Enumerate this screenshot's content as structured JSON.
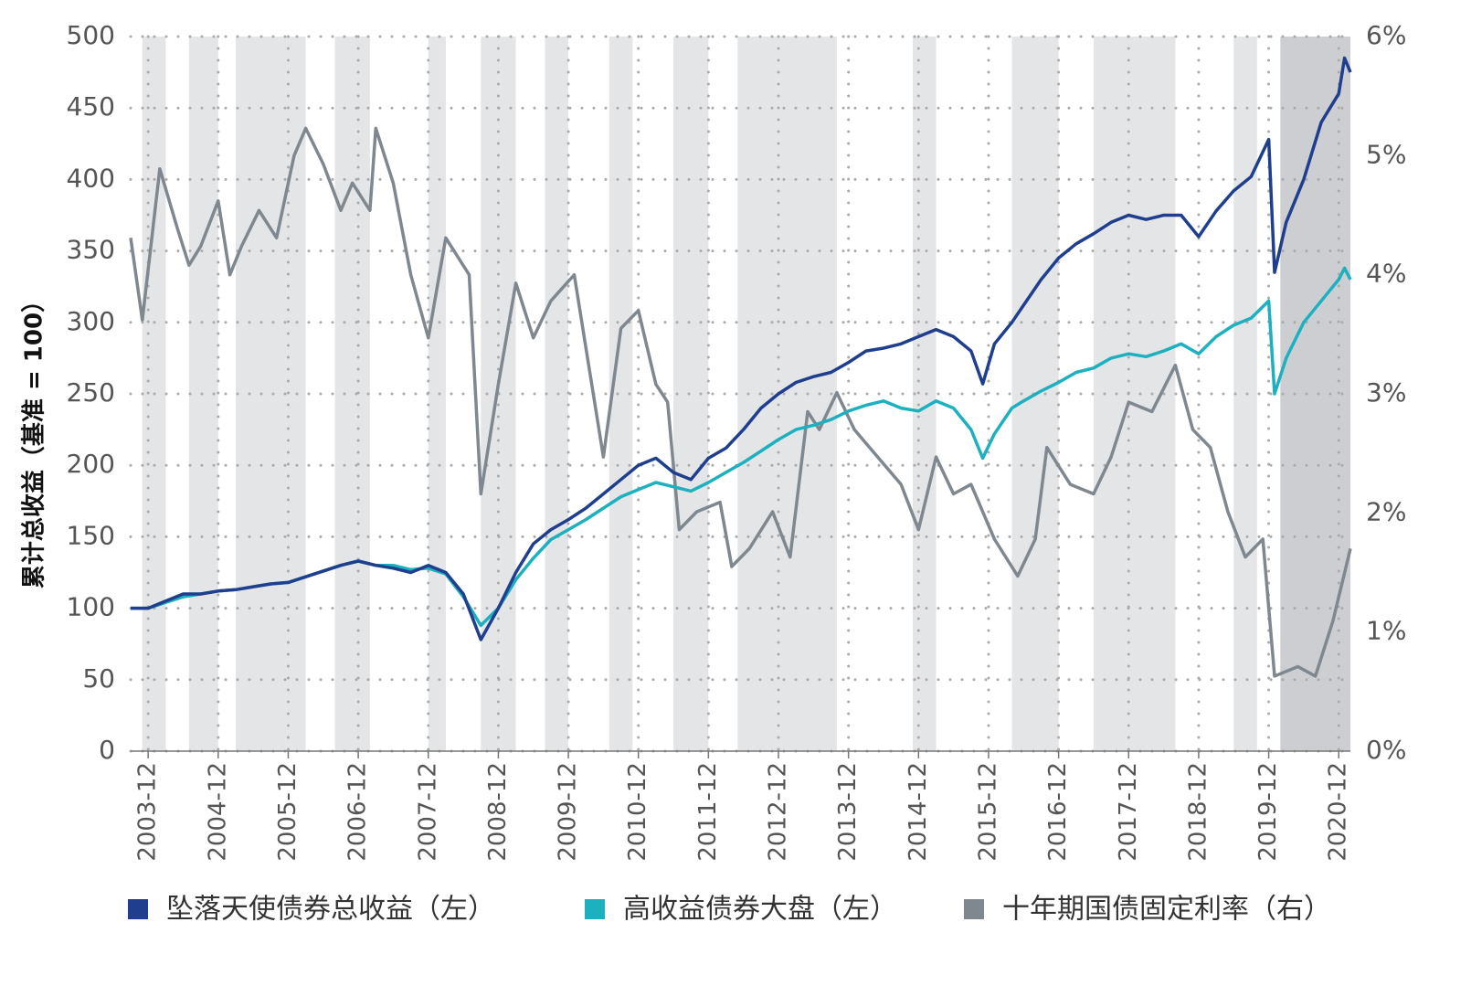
{
  "chart_data": {
    "type": "line",
    "y_label": "累计总收益（基准 = 100）",
    "xlim": [
      "2003-09",
      "2021-02"
    ],
    "xticks": [
      "2003-12",
      "2004-12",
      "2005-12",
      "2006-12",
      "2007-12",
      "2008-12",
      "2009-12",
      "2010-12",
      "2011-12",
      "2012-12",
      "2013-12",
      "2014-12",
      "2015-12",
      "2016-12",
      "2017-12",
      "2018-12",
      "2019-12",
      "2020-12"
    ],
    "ylim": [
      0,
      500
    ],
    "yticks": [
      0,
      50,
      100,
      150,
      200,
      250,
      300,
      350,
      400,
      450,
      500
    ],
    "y2lim": [
      0,
      6
    ],
    "y2ticks": [
      {
        "value": 0,
        "label": "0%"
      },
      {
        "value": 1,
        "label": "1%"
      },
      {
        "value": 2,
        "label": "2%"
      },
      {
        "value": 3,
        "label": "3%"
      },
      {
        "value": 4,
        "label": "4%"
      },
      {
        "value": 5,
        "label": "5%"
      },
      {
        "value": 6,
        "label": "6%"
      }
    ],
    "grid": true,
    "legend": "bottom",
    "bands": [
      {
        "start": "2003-11",
        "end": "2004-03",
        "color": "#e4e5e7"
      },
      {
        "start": "2004-07",
        "end": "2004-12",
        "color": "#e4e5e7"
      },
      {
        "start": "2005-03",
        "end": "2006-03",
        "color": "#e4e5e7"
      },
      {
        "start": "2006-08",
        "end": "2007-02",
        "color": "#e4e5e7"
      },
      {
        "start": "2007-12",
        "end": "2008-03",
        "color": "#e4e5e7"
      },
      {
        "start": "2008-09",
        "end": "2009-03",
        "color": "#e4e5e7"
      },
      {
        "start": "2009-08",
        "end": "2009-12",
        "color": "#e4e5e7"
      },
      {
        "start": "2010-07",
        "end": "2010-11",
        "color": "#e4e5e7"
      },
      {
        "start": "2011-06",
        "end": "2011-12",
        "color": "#e4e5e7"
      },
      {
        "start": "2012-05",
        "end": "2013-10",
        "color": "#e4e5e7"
      },
      {
        "start": "2014-11",
        "end": "2015-03",
        "color": "#e4e5e7"
      },
      {
        "start": "2016-04",
        "end": "2016-12",
        "color": "#e4e5e7"
      },
      {
        "start": "2017-06",
        "end": "2018-08",
        "color": "#e4e5e7"
      },
      {
        "start": "2019-06",
        "end": "2019-10",
        "color": "#e4e5e7"
      },
      {
        "start": "2020-02",
        "end": "2021-02",
        "color": "#cdced1"
      }
    ],
    "x": [
      "2003-09",
      "2003-12",
      "2004-03",
      "2004-06",
      "2004-09",
      "2004-12",
      "2005-03",
      "2005-06",
      "2005-09",
      "2005-12",
      "2006-03",
      "2006-06",
      "2006-09",
      "2006-12",
      "2007-03",
      "2007-06",
      "2007-09",
      "2007-12",
      "2008-03",
      "2008-06",
      "2008-09",
      "2008-12",
      "2009-03",
      "2009-06",
      "2009-09",
      "2009-12",
      "2010-03",
      "2010-06",
      "2010-09",
      "2010-12",
      "2011-03",
      "2011-06",
      "2011-09",
      "2011-12",
      "2012-03",
      "2012-06",
      "2012-09",
      "2012-12",
      "2013-03",
      "2013-06",
      "2013-09",
      "2013-12",
      "2014-03",
      "2014-06",
      "2014-09",
      "2014-12",
      "2015-03",
      "2015-06",
      "2015-09",
      "2015-11",
      "2016-01",
      "2016-04",
      "2016-06",
      "2016-09",
      "2016-12",
      "2017-03",
      "2017-06",
      "2017-09",
      "2017-12",
      "2018-03",
      "2018-06",
      "2018-09",
      "2018-12",
      "2019-03",
      "2019-06",
      "2019-09",
      "2019-12",
      "2020-01",
      "2020-03",
      "2020-06",
      "2020-09",
      "2020-12",
      "2021-01",
      "2021-02"
    ],
    "series": [
      {
        "name": "坠落天使债券总收益（左）",
        "color": "#1f3f8e",
        "values": [
          100,
          100,
          105,
          110,
          110,
          112,
          113,
          115,
          117,
          118,
          122,
          126,
          130,
          133,
          130,
          128,
          125,
          130,
          125,
          110,
          78,
          100,
          125,
          145,
          155,
          162,
          170,
          180,
          190,
          200,
          205,
          195,
          190,
          205,
          212,
          225,
          240,
          250,
          258,
          262,
          265,
          272,
          280,
          282,
          285,
          290,
          295,
          290,
          280,
          257,
          285,
          300,
          312,
          330,
          345,
          355,
          362,
          370,
          375,
          372,
          375,
          375,
          360,
          378,
          392,
          402,
          428,
          335,
          370,
          400,
          440,
          460,
          485,
          475
        ]
      },
      {
        "name": "高收益债券大盘（左）",
        "color": "#1db1bf",
        "values": [
          100,
          100,
          104,
          108,
          110,
          112,
          113,
          115,
          117,
          118,
          122,
          126,
          130,
          133,
          130,
          130,
          127,
          128,
          124,
          108,
          88,
          100,
          120,
          135,
          148,
          155,
          162,
          170,
          178,
          183,
          188,
          185,
          182,
          188,
          195,
          202,
          210,
          218,
          225,
          228,
          232,
          238,
          242,
          245,
          240,
          238,
          245,
          240,
          225,
          205,
          222,
          240,
          245,
          252,
          258,
          265,
          268,
          275,
          278,
          276,
          280,
          285,
          278,
          290,
          298,
          303,
          315,
          250,
          275,
          300,
          315,
          330,
          338,
          330
        ]
      },
      {
        "name": "十年期国债固定利率（右）",
        "color": "#7f878f",
        "axis": "y2",
        "x": [
          "2003-09",
          "2003-11",
          "2004-02",
          "2004-05",
          "2004-07",
          "2004-09",
          "2004-12",
          "2005-02",
          "2005-04",
          "2005-07",
          "2005-10",
          "2006-01",
          "2006-03",
          "2006-06",
          "2006-09",
          "2006-11",
          "2007-02",
          "2007-03",
          "2007-06",
          "2007-09",
          "2007-12",
          "2008-03",
          "2008-07",
          "2008-09",
          "2008-12",
          "2009-03",
          "2009-06",
          "2009-09",
          "2010-01",
          "2010-03",
          "2010-06",
          "2010-09",
          "2010-12",
          "2011-03",
          "2011-05",
          "2011-07",
          "2011-10",
          "2012-02",
          "2012-04",
          "2012-07",
          "2012-11",
          "2013-02",
          "2013-05",
          "2013-07",
          "2013-10",
          "2014-01",
          "2014-05",
          "2014-09",
          "2014-12",
          "2015-03",
          "2015-06",
          "2015-09",
          "2016-01",
          "2016-05",
          "2016-08",
          "2016-10",
          "2017-02",
          "2017-06",
          "2017-09",
          "2017-12",
          "2018-04",
          "2018-08",
          "2018-11",
          "2019-02",
          "2019-05",
          "2019-08",
          "2019-11",
          "2020-01",
          "2020-05",
          "2020-08",
          "2020-11",
          "2021-02"
        ],
        "values": [
          4.31,
          3.62,
          4.89,
          4.39,
          4.08,
          4.24,
          4.62,
          4.0,
          4.24,
          4.54,
          4.31,
          5.0,
          5.23,
          4.93,
          4.54,
          4.77,
          4.54,
          5.23,
          4.77,
          4.0,
          3.47,
          4.31,
          4.0,
          2.16,
          3.08,
          3.93,
          3.47,
          3.78,
          4.0,
          3.39,
          2.47,
          3.55,
          3.7,
          3.08,
          2.93,
          1.86,
          2.01,
          2.09,
          1.55,
          1.7,
          2.01,
          1.63,
          2.85,
          2.7,
          3.01,
          2.7,
          2.47,
          2.24,
          1.86,
          2.47,
          2.16,
          2.24,
          1.78,
          1.47,
          1.78,
          2.55,
          2.24,
          2.16,
          2.47,
          2.93,
          2.85,
          3.24,
          2.7,
          2.55,
          2.01,
          1.63,
          1.78,
          0.63,
          0.71,
          0.63,
          1.09,
          1.7
        ]
      }
    ]
  }
}
